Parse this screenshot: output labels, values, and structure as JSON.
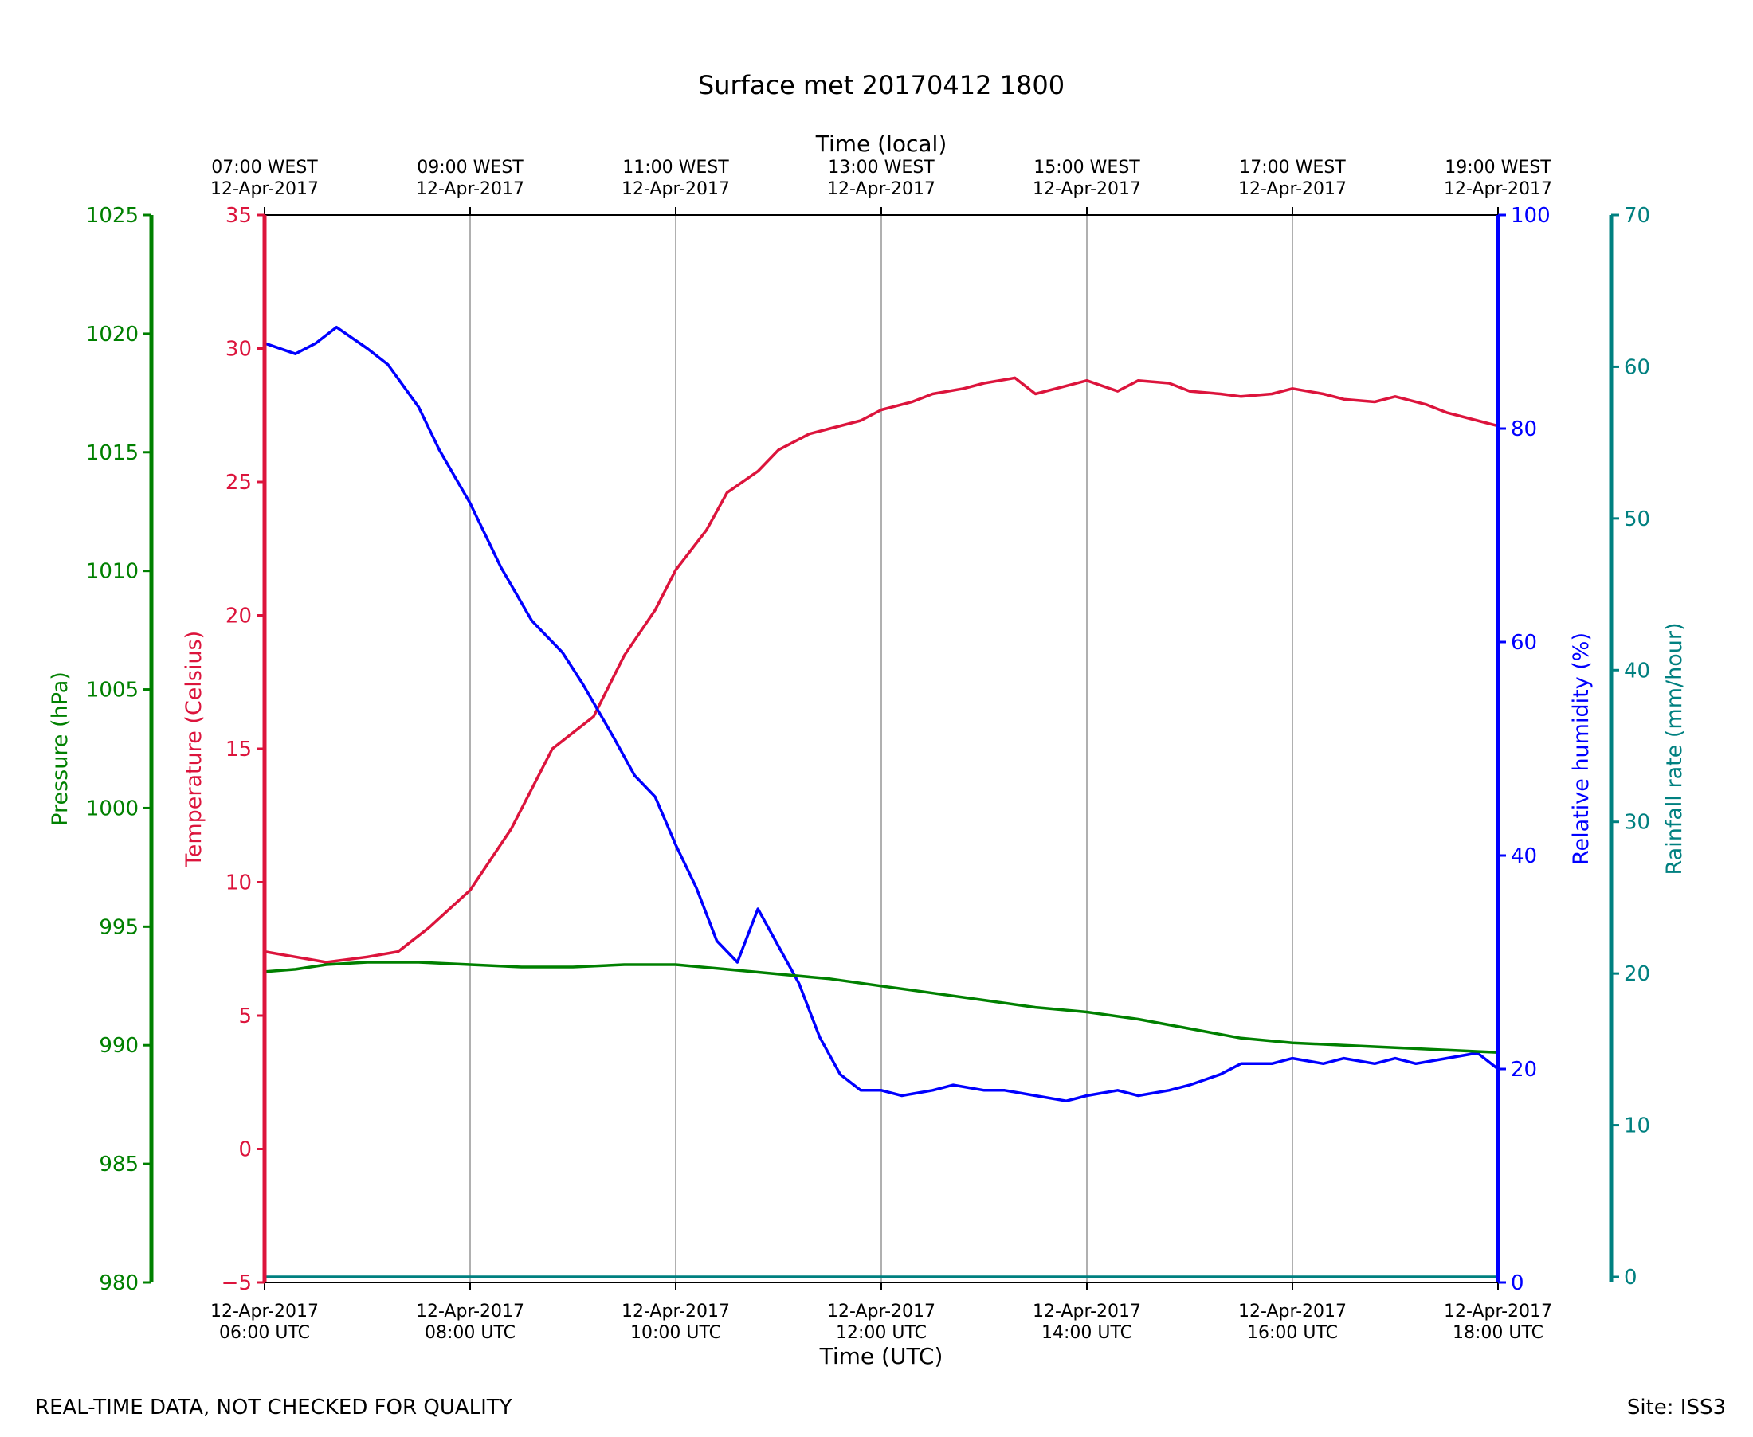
{
  "chart_data": {
    "type": "line",
    "title": "Surface met 20170412 1800",
    "top_axis": {
      "label": "Time (local)",
      "ticks": [
        {
          "time": "07:00 WEST",
          "date": "12-Apr-2017"
        },
        {
          "time": "09:00 WEST",
          "date": "12-Apr-2017"
        },
        {
          "time": "11:00 WEST",
          "date": "12-Apr-2017"
        },
        {
          "time": "13:00 WEST",
          "date": "12-Apr-2017"
        },
        {
          "time": "15:00 WEST",
          "date": "12-Apr-2017"
        },
        {
          "time": "17:00 WEST",
          "date": "12-Apr-2017"
        },
        {
          "time": "19:00 WEST",
          "date": "12-Apr-2017"
        }
      ]
    },
    "bottom_axis": {
      "label": "Time (UTC)",
      "xlim_hours": [
        6,
        18
      ],
      "ticks": [
        {
          "date": "12-Apr-2017",
          "time": "06:00 UTC",
          "hour": 6
        },
        {
          "date": "12-Apr-2017",
          "time": "08:00 UTC",
          "hour": 8
        },
        {
          "date": "12-Apr-2017",
          "time": "10:00 UTC",
          "hour": 10
        },
        {
          "date": "12-Apr-2017",
          "time": "12:00 UTC",
          "hour": 12
        },
        {
          "date": "12-Apr-2017",
          "time": "14:00 UTC",
          "hour": 14
        },
        {
          "date": "12-Apr-2017",
          "time": "16:00 UTC",
          "hour": 16
        },
        {
          "date": "12-Apr-2017",
          "time": "18:00 UTC",
          "hour": 18
        }
      ]
    },
    "axes": {
      "pressure": {
        "label": "Pressure (hPa)",
        "ylim": [
          980,
          1025
        ],
        "ticks": [
          "980",
          "985",
          "990",
          "995",
          "1000",
          "1005",
          "1010",
          "1015",
          "1020",
          "1025"
        ],
        "color": "#008000"
      },
      "temperature": {
        "label": "Temperature (Celsius)",
        "ylim": [
          -5,
          35
        ],
        "ticks": [
          "−5",
          "0",
          "5",
          "10",
          "15",
          "20",
          "25",
          "30",
          "35"
        ],
        "color": "#dc143c"
      },
      "humidity": {
        "label": "Relative humidity (%)",
        "ylim": [
          0,
          100
        ],
        "ticks": [
          "0",
          "20",
          "40",
          "60",
          "80",
          "100"
        ],
        "color": "#0000ff"
      },
      "rainfall": {
        "label": "Rainfall rate (mm/hour)",
        "ylim": [
          0,
          70
        ],
        "ticks": [
          "0",
          "10",
          "20",
          "30",
          "40",
          "50",
          "60",
          "70"
        ],
        "color": "#008080"
      }
    },
    "series": [
      {
        "name": "Temperature",
        "axis": "temperature",
        "color": "#dc143c",
        "x": [
          6.0,
          6.3,
          6.6,
          7.0,
          7.3,
          7.6,
          8.0,
          8.4,
          8.8,
          9.2,
          9.5,
          9.8,
          10.0,
          10.3,
          10.5,
          10.8,
          11.0,
          11.3,
          11.5,
          11.8,
          12.0,
          12.3,
          12.5,
          12.8,
          13.0,
          13.3,
          13.5,
          13.8,
          14.0,
          14.3,
          14.5,
          14.8,
          15.0,
          15.3,
          15.5,
          15.8,
          16.0,
          16.3,
          16.5,
          16.8,
          17.0,
          17.3,
          17.5,
          17.8,
          18.0
        ],
        "values": [
          7.4,
          7.2,
          7.0,
          7.2,
          7.4,
          8.3,
          9.7,
          12.0,
          15.0,
          16.2,
          18.5,
          20.2,
          21.7,
          23.2,
          24.6,
          25.4,
          26.2,
          26.8,
          27.0,
          27.3,
          27.7,
          28.0,
          28.3,
          28.5,
          28.7,
          28.9,
          28.3,
          28.6,
          28.8,
          28.4,
          28.8,
          28.7,
          28.4,
          28.3,
          28.2,
          28.3,
          28.5,
          28.3,
          28.1,
          28.0,
          28.2,
          27.9,
          27.6,
          27.3,
          27.1
        ]
      },
      {
        "name": "Relative humidity",
        "axis": "humidity",
        "color": "#0000ff",
        "x": [
          6.0,
          6.3,
          6.5,
          6.7,
          7.0,
          7.2,
          7.5,
          7.7,
          8.0,
          8.3,
          8.6,
          8.9,
          9.1,
          9.4,
          9.6,
          9.8,
          10.0,
          10.2,
          10.4,
          10.6,
          10.8,
          11.0,
          11.2,
          11.4,
          11.6,
          11.8,
          12.0,
          12.2,
          12.5,
          12.7,
          13.0,
          13.2,
          13.5,
          13.8,
          14.0,
          14.3,
          14.5,
          14.8,
          15.0,
          15.3,
          15.5,
          15.8,
          16.0,
          16.3,
          16.5,
          16.8,
          17.0,
          17.2,
          17.5,
          17.8,
          18.0
        ],
        "values": [
          88.0,
          87.0,
          88.0,
          89.5,
          87.5,
          86.0,
          82.0,
          78.0,
          73.0,
          67.0,
          62.0,
          59.0,
          56.0,
          51.0,
          47.5,
          45.5,
          41.0,
          37.0,
          32.0,
          30.0,
          35.0,
          31.5,
          28.0,
          23.0,
          19.5,
          18.0,
          18.0,
          17.5,
          18.0,
          18.5,
          18.0,
          18.0,
          17.5,
          17.0,
          17.5,
          18.0,
          17.5,
          18.0,
          18.5,
          19.5,
          20.5,
          20.5,
          21.0,
          20.5,
          21.0,
          20.5,
          21.0,
          20.5,
          21.0,
          21.5,
          20.0
        ]
      },
      {
        "name": "Pressure",
        "axis": "pressure",
        "color": "#008000",
        "x": [
          6.0,
          6.3,
          6.6,
          7.0,
          7.5,
          8.0,
          8.5,
          9.0,
          9.5,
          10.0,
          10.5,
          11.0,
          11.5,
          12.0,
          12.5,
          13.0,
          13.5,
          14.0,
          14.5,
          15.0,
          15.5,
          16.0,
          16.5,
          17.0,
          17.5,
          18.0
        ],
        "values": [
          993.1,
          993.2,
          993.4,
          993.5,
          993.5,
          993.4,
          993.3,
          993.3,
          993.4,
          993.4,
          993.2,
          993.0,
          992.8,
          992.5,
          992.2,
          991.9,
          991.6,
          991.4,
          991.1,
          990.7,
          990.3,
          990.1,
          990.0,
          989.9,
          989.8,
          989.7
        ]
      },
      {
        "name": "Rainfall rate",
        "axis": "rainfall",
        "color": "#008080",
        "x": [
          6.0,
          18.0
        ],
        "values": [
          0,
          0
        ]
      }
    ],
    "grid": "vertical"
  },
  "footer": {
    "left": "REAL-TIME DATA, NOT CHECKED FOR QUALITY",
    "right": "Site: ISS3"
  }
}
